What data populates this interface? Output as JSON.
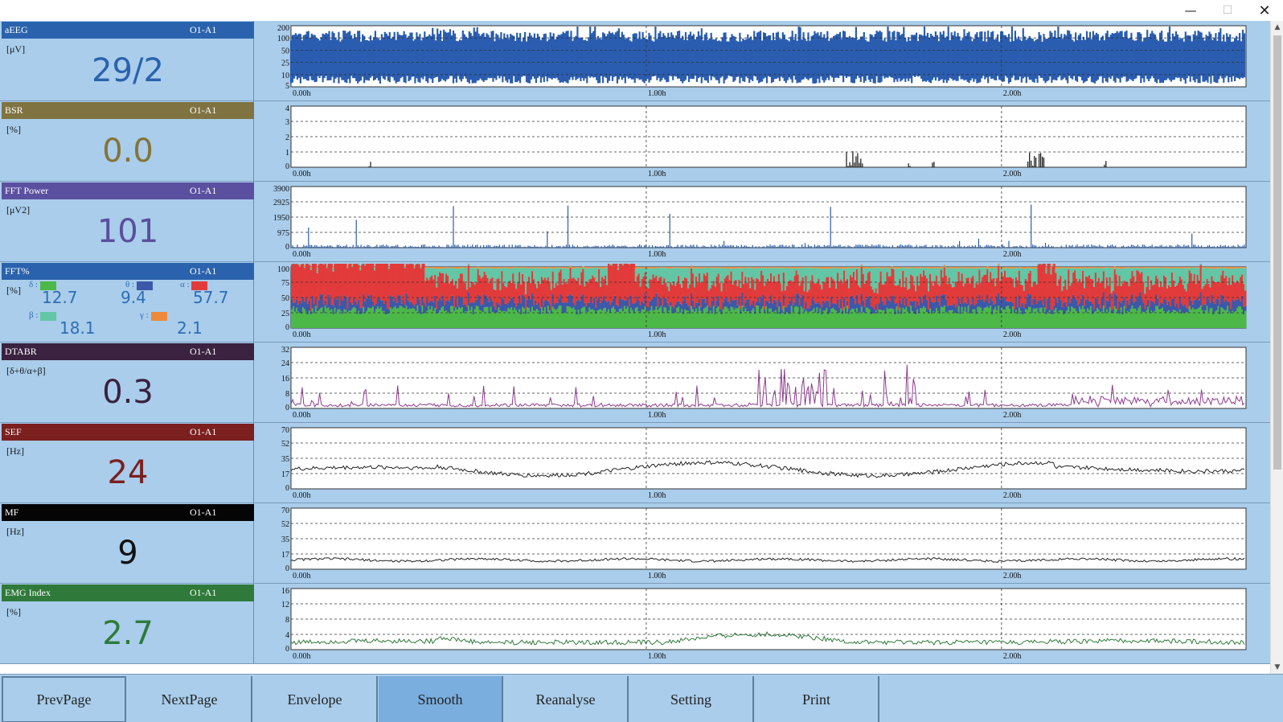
{
  "window": {
    "minimize_glyph": "—",
    "maximize_glyph": "☐",
    "close_glyph": "✕"
  },
  "time_labels": [
    "0.00h",
    "1.00h",
    "2.00h"
  ],
  "panels": [
    {
      "name": "aEEG",
      "channel": "O1-A1",
      "unit": "[μV]",
      "value": "29/2",
      "value_color": "#2a62ad",
      "header_color": "#2a62ad",
      "y_ticks": [
        "200",
        "100",
        "50",
        "25",
        "10",
        "5"
      ],
      "trace_color": "#2a5db0",
      "trace_type": "band"
    },
    {
      "name": "BSR",
      "channel": "O1-A1",
      "unit": "[%]",
      "value": "0.0",
      "value_color": "#857438",
      "header_color": "#7f7341",
      "y_ticks": [
        "4",
        "3",
        "2",
        "1",
        "0"
      ],
      "trace_color": "#111111",
      "trace_type": "spikes_bsr"
    },
    {
      "name": "FFT Power",
      "channel": "O1-A1",
      "unit": "[μV2]",
      "value": "101",
      "value_color": "#5a4f9c",
      "header_color": "#5b50a0",
      "y_ticks": [
        "3900",
        "2925",
        "1950",
        "975",
        "0"
      ],
      "trace_color": "#2a5db0",
      "trace_type": "spikes"
    },
    {
      "name": "FFT%",
      "channel": "O1-A1",
      "unit": "[%]",
      "value": "",
      "value_color": "#2f6db6",
      "header_color": "#2a62ad",
      "y_ticks": [
        "100",
        "75",
        "50",
        "25",
        "0"
      ],
      "trace_color": "#e23b3b",
      "trace_type": "stacked",
      "bands": [
        {
          "symbol": "δ :",
          "value": "12.7",
          "color": "#4cb848"
        },
        {
          "symbol": "θ :",
          "value": "9.4",
          "color": "#3c58a8"
        },
        {
          "symbol": "α :",
          "value": "57.7",
          "color": "#e23b3b"
        },
        {
          "symbol": "β :",
          "value": "18.1",
          "color": "#63c6a4"
        },
        {
          "symbol": "γ :",
          "value": "2.1",
          "color": "#ee8a3c"
        }
      ]
    },
    {
      "name": "DTABR",
      "channel": "O1-A1",
      "unit": "[δ+θ/α+β]",
      "value": "0.3",
      "value_color": "#3a2240",
      "header_color": "#3a2240",
      "y_ticks": [
        "32",
        "24",
        "16",
        "8",
        "0"
      ],
      "trace_color": "#8e3a8e",
      "trace_type": "spiky_line"
    },
    {
      "name": "SEF",
      "channel": "O1-A1",
      "unit": "[Hz]",
      "value": "24",
      "value_color": "#7b1f1f",
      "header_color": "#7b1f1f",
      "y_ticks": [
        "70",
        "52",
        "35",
        "17",
        "0"
      ],
      "trace_color": "#222222",
      "trace_type": "line_mid"
    },
    {
      "name": "MF",
      "channel": "O1-A1",
      "unit": "[Hz]",
      "value": "9",
      "value_color": "#111111",
      "header_color": "#050505",
      "y_ticks": [
        "70",
        "52",
        "35",
        "17",
        "0"
      ],
      "trace_color": "#222222",
      "trace_type": "line_low"
    },
    {
      "name": "EMG Index",
      "channel": "O1-A1",
      "unit": "[%]",
      "value": "2.7",
      "value_color": "#2f7a3a",
      "header_color": "#2f7a3a",
      "y_ticks": [
        "16",
        "12",
        "8",
        "4",
        "0"
      ],
      "trace_color": "#2f7a3a",
      "trace_type": "line_emg"
    }
  ],
  "toolbar": {
    "buttons": [
      "PrevPage",
      "NextPage",
      "Envelope",
      "Smooth",
      "Reanalyse",
      "Setting",
      "Print"
    ],
    "active": "Smooth"
  }
}
